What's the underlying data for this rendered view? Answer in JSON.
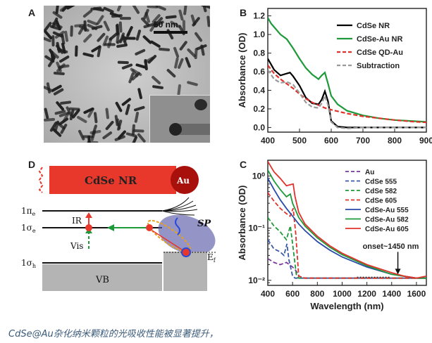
{
  "figure": {
    "panels": [
      {
        "letter": "A",
        "scale_bar": "50 nm"
      },
      {
        "letter": "B"
      },
      {
        "letter": "C"
      },
      {
        "letter": "D"
      }
    ],
    "caption": "CdSe@Au杂化纳米颗粒的光吸收性能被显著提升，"
  },
  "diagram": {
    "rod_label": "CdSe NR",
    "sphere_label": "Au",
    "levels": [
      "1π",
      "1σ",
      "1σ"
    ],
    "level_subscripts": [
      "e",
      "e",
      "h"
    ],
    "ir_label": "IR",
    "vis_label": "Vis",
    "sp_label": "SP",
    "fermi_label": "E",
    "fermi_subscript": "f",
    "vb_label": "VB"
  },
  "colors": {
    "cdse_nr": "#000000",
    "cdse_au_nr": "#1f9a3a",
    "cdse_qd_au": "#e0322a",
    "subtraction": "#9a9a9a",
    "rod": "#e8382b",
    "gold": "#a8100c"
  },
  "chart_data": [
    {
      "type": "line",
      "panel": "B",
      "xlabel": "",
      "ylabel": "Absorbance (OD)",
      "xlim": [
        400,
        900
      ],
      "ylim": [
        -0.05,
        1.28
      ],
      "xticks": [
        400,
        500,
        600,
        700,
        800,
        900
      ],
      "yticks": [
        0.0,
        0.2,
        0.4,
        0.6,
        0.8,
        1.0,
        1.2
      ],
      "legend_position": "top-right",
      "series": [
        {
          "name": "CdSe NR",
          "color": "#000000",
          "dash": "solid",
          "x": [
            400,
            420,
            440,
            460,
            470,
            480,
            500,
            520,
            540,
            560,
            570,
            580,
            590,
            600,
            620,
            650,
            700,
            800,
            900
          ],
          "y": [
            0.74,
            0.62,
            0.56,
            0.58,
            0.59,
            0.55,
            0.45,
            0.32,
            0.26,
            0.25,
            0.3,
            0.39,
            0.28,
            0.07,
            0.01,
            0.0,
            0.0,
            0.0,
            0.0
          ]
        },
        {
          "name": "CdSe-Au NR",
          "color": "#1f9a3a",
          "dash": "solid",
          "x": [
            400,
            410,
            420,
            440,
            460,
            480,
            500,
            520,
            540,
            560,
            570,
            580,
            590,
            600,
            620,
            650,
            700,
            750,
            800,
            850,
            900
          ],
          "y": [
            1.18,
            1.12,
            1.08,
            1.0,
            0.95,
            0.85,
            0.74,
            0.64,
            0.57,
            0.52,
            0.56,
            0.59,
            0.47,
            0.34,
            0.25,
            0.18,
            0.13,
            0.1,
            0.08,
            0.07,
            0.06
          ]
        },
        {
          "name": "CdSe QD-Au",
          "color": "#e0322a",
          "dash": "dashed",
          "x": [
            400,
            420,
            440,
            460,
            480,
            500,
            520,
            540,
            560,
            580,
            600,
            650,
            700,
            750,
            800,
            850,
            900
          ],
          "y": [
            0.67,
            0.58,
            0.52,
            0.47,
            0.42,
            0.36,
            0.31,
            0.27,
            0.24,
            0.21,
            0.19,
            0.15,
            0.12,
            0.1,
            0.08,
            0.065,
            0.055
          ]
        },
        {
          "name": "Subtraction",
          "color": "#9a9a9a",
          "dash": "dashed",
          "x": [
            400,
            420,
            440,
            460,
            480,
            500,
            520,
            540,
            560,
            570,
            580,
            590,
            600,
            620,
            650,
            700,
            800,
            900
          ],
          "y": [
            0.62,
            0.52,
            0.48,
            0.49,
            0.46,
            0.37,
            0.27,
            0.22,
            0.21,
            0.26,
            0.34,
            0.24,
            0.06,
            0.0,
            -0.01,
            0.0,
            0.0,
            0.0
          ]
        }
      ]
    },
    {
      "type": "line",
      "panel": "C",
      "xlabel": "Wavelength (nm)",
      "ylabel": "Absorbance (OD)",
      "yscale": "log",
      "xlim": [
        400,
        1680
      ],
      "ylim": [
        0.008,
        2.0
      ],
      "xticks": [
        400,
        600,
        800,
        1000,
        1200,
        1400,
        1600
      ],
      "ytick_labels": [
        "10⁰",
        "10⁻¹",
        "10⁻²"
      ],
      "yticks": [
        1,
        0.1,
        0.01
      ],
      "legend_position": "top-right",
      "annotation": {
        "text": "onset~1450 nm",
        "x": 1450,
        "y": 0.013
      },
      "series": [
        {
          "name": "Au",
          "color": "#7a3a9a",
          "dash": "dashed",
          "x": [
            400,
            450,
            500,
            550,
            600,
            630,
            650,
            700,
            800,
            1000,
            1200,
            1400,
            1600,
            1680
          ],
          "y": [
            0.026,
            0.022,
            0.02,
            0.022,
            0.018,
            0.015,
            0.012,
            0.011,
            0.011,
            0.011,
            0.011,
            0.011,
            0.011,
            0.011
          ]
        },
        {
          "name": "CdSe 555",
          "color": "#3a5aa8",
          "dash": "dashed",
          "x": [
            400,
            450,
            500,
            530,
            555,
            570,
            600,
            620,
            700,
            900,
            1200,
            1500,
            1680
          ],
          "y": [
            0.06,
            0.04,
            0.035,
            0.03,
            0.05,
            0.025,
            0.012,
            0.011,
            0.011,
            0.011,
            0.011,
            0.011,
            0.011
          ]
        },
        {
          "name": "CdSe 582",
          "color": "#1f9a3a",
          "dash": "dashed",
          "x": [
            400,
            450,
            500,
            550,
            582,
            600,
            630,
            650,
            700,
            900,
            1200,
            1500,
            1680
          ],
          "y": [
            0.16,
            0.11,
            0.085,
            0.06,
            0.11,
            0.05,
            0.013,
            0.011,
            0.011,
            0.011,
            0.011,
            0.011,
            0.011
          ]
        },
        {
          "name": "CdSe 605",
          "color": "#e0322a",
          "dash": "dashed",
          "x": [
            400,
            450,
            500,
            550,
            580,
            605,
            625,
            650,
            700,
            900,
            1200,
            1500,
            1680
          ],
          "y": [
            0.48,
            0.33,
            0.24,
            0.19,
            0.17,
            0.24,
            0.08,
            0.012,
            0.011,
            0.011,
            0.011,
            0.011,
            0.011
          ]
        },
        {
          "name": "CdSe-Au 555",
          "color": "#2a4aa8",
          "dash": "solid",
          "x": [
            400,
            450,
            500,
            550,
            600,
            650,
            700,
            800,
            900,
            1000,
            1200,
            1400,
            1600,
            1680
          ],
          "y": [
            0.9,
            0.55,
            0.35,
            0.24,
            0.17,
            0.12,
            0.09,
            0.055,
            0.038,
            0.028,
            0.018,
            0.013,
            0.011,
            0.011
          ]
        },
        {
          "name": "CdSe-Au 582",
          "color": "#1f9a3a",
          "dash": "solid",
          "x": [
            400,
            450,
            500,
            550,
            582,
            600,
            650,
            700,
            800,
            900,
            1000,
            1200,
            1400,
            1600,
            1680
          ],
          "y": [
            1.3,
            0.8,
            0.55,
            0.4,
            0.45,
            0.3,
            0.16,
            0.11,
            0.065,
            0.043,
            0.031,
            0.019,
            0.013,
            0.011,
            0.011
          ]
        },
        {
          "name": "CdSe-Au 605",
          "color": "#e0322a",
          "dash": "solid",
          "x": [
            400,
            450,
            500,
            550,
            605,
            620,
            650,
            700,
            800,
            900,
            1000,
            1200,
            1400,
            1500,
            1600,
            1680
          ],
          "y": [
            1.9,
            1.2,
            0.9,
            0.65,
            0.7,
            0.4,
            0.2,
            0.12,
            0.07,
            0.046,
            0.033,
            0.02,
            0.014,
            0.012,
            0.011,
            0.012
          ]
        }
      ]
    }
  ]
}
